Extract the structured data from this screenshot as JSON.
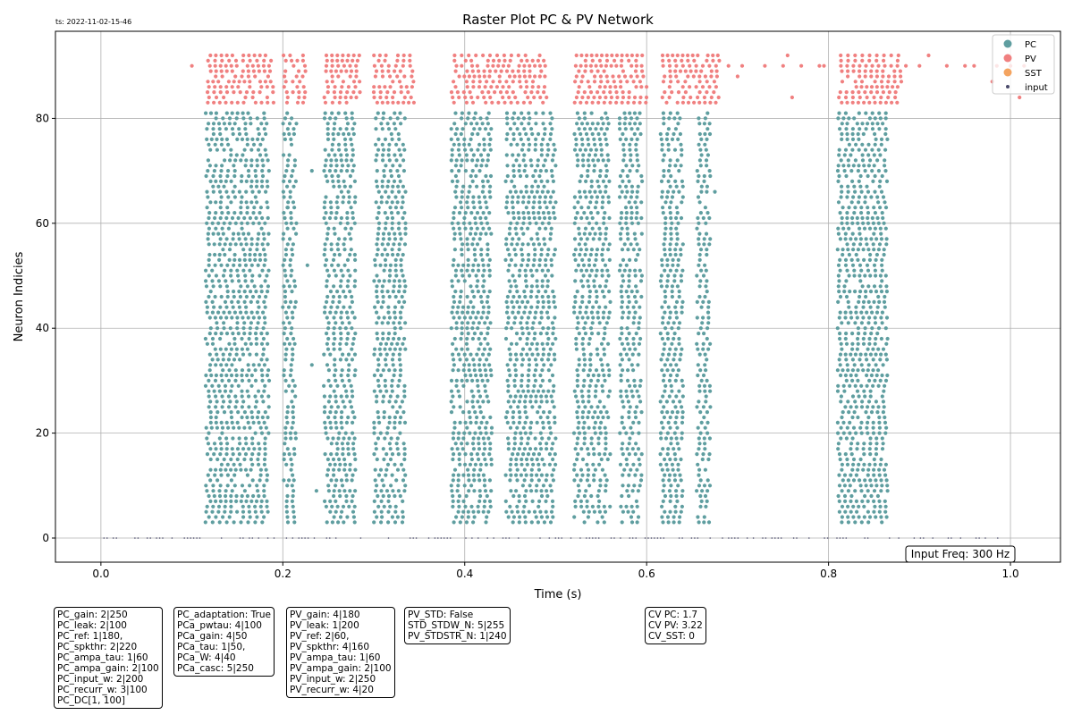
{
  "timestamp": "ts: 2022-11-02-15-46",
  "chart_data": {
    "type": "scatter",
    "title": "Raster Plot PC & PV Network",
    "xlabel": "Time (s)",
    "ylabel": "Neuron Indicies",
    "xlim": [
      -0.05,
      1.055
    ],
    "ylim": [
      -4.6,
      96.6
    ],
    "x_ticks": [
      0.0,
      0.2,
      0.4,
      0.6,
      0.8,
      1.0
    ],
    "x_tick_labels": [
      "0.0",
      "0.2",
      "0.4",
      "0.6",
      "0.8",
      "1.0"
    ],
    "y_ticks": [
      0,
      20,
      40,
      60,
      80
    ],
    "y_tick_labels": [
      "0",
      "20",
      "40",
      "60",
      "80"
    ],
    "grid": true,
    "legend_position": "top-right",
    "legend": [
      {
        "label": "PC",
        "color": "#5f9ea0",
        "marker": "large-dot"
      },
      {
        "label": "PV",
        "color": "#f08080",
        "marker": "large-dot"
      },
      {
        "label": "SST",
        "color": "#f4a460",
        "marker": "large-dot"
      },
      {
        "label": "input",
        "color": "#4a4a6a",
        "marker": "small-dot"
      }
    ],
    "series": [
      {
        "name": "PC",
        "color": "#5f9ea0",
        "neuron_range": [
          3,
          81
        ],
        "bursts": [
          {
            "start": 0.115,
            "end": 0.185
          },
          {
            "start": 0.2,
            "end": 0.215
          },
          {
            "start": 0.245,
            "end": 0.28
          },
          {
            "start": 0.3,
            "end": 0.335
          },
          {
            "start": 0.385,
            "end": 0.43
          },
          {
            "start": 0.445,
            "end": 0.5
          },
          {
            "start": 0.52,
            "end": 0.56
          },
          {
            "start": 0.57,
            "end": 0.595
          },
          {
            "start": 0.615,
            "end": 0.64
          },
          {
            "start": 0.655,
            "end": 0.67
          },
          {
            "start": 0.81,
            "end": 0.865
          }
        ],
        "isolated_points": [
          [
            0.232,
            70
          ],
          [
            0.227,
            52
          ],
          [
            0.232,
            33
          ],
          [
            0.237,
            9
          ],
          [
            0.205,
            63
          ],
          [
            0.675,
            66
          ]
        ]
      },
      {
        "name": "PV",
        "color": "#f08080",
        "neuron_range": [
          83,
          92
        ],
        "bursts": [
          {
            "start": 0.115,
            "end": 0.19
          },
          {
            "start": 0.2,
            "end": 0.225
          },
          {
            "start": 0.245,
            "end": 0.285
          },
          {
            "start": 0.3,
            "end": 0.345
          },
          {
            "start": 0.385,
            "end": 0.49
          },
          {
            "start": 0.52,
            "end": 0.6
          },
          {
            "start": 0.615,
            "end": 0.68
          },
          {
            "start": 0.81,
            "end": 0.88
          }
        ],
        "isolated_points": [
          [
            0.1,
            90
          ],
          [
            0.69,
            90
          ],
          [
            0.7,
            88
          ],
          [
            0.705,
            90
          ],
          [
            0.73,
            90
          ],
          [
            0.75,
            90
          ],
          [
            0.755,
            92
          ],
          [
            0.76,
            84
          ],
          [
            0.77,
            90
          ],
          [
            0.79,
            90
          ],
          [
            0.795,
            90
          ],
          [
            0.885,
            90
          ],
          [
            0.9,
            90
          ],
          [
            0.91,
            92
          ],
          [
            0.93,
            90
          ],
          [
            0.95,
            90
          ],
          [
            0.96,
            90
          ],
          [
            0.98,
            87
          ],
          [
            0.985,
            90
          ],
          [
            1.0,
            90
          ],
          [
            1.01,
            84
          ],
          [
            1.015,
            90
          ]
        ]
      },
      {
        "name": "input",
        "color": "#4a4a6a",
        "neuron_range": [
          0,
          0
        ],
        "x_range": [
          0.0,
          1.0
        ]
      }
    ]
  },
  "input_freq": "Input Freq: 300 Hz",
  "param_boxes": [
    {
      "text": "PC_gain: 2|250\nPC_leak: 2|100\nPC_ref: 1|180,\nPC_spkthr: 2|220\nPC_ampa_tau: 1|60\nPC_ampa_gain: 2|100\nPC_input_w: 2|200\nPC_recurr_w: 3|100\nPC_DC[1, 100]"
    },
    {
      "text": "PC_adaptation: True\nPCa_pwtau: 4|100\nPCa_gain: 4|50\nPCa_tau: 1|50,\nPCa_W: 4|40\nPCa_casc: 5|250"
    },
    {
      "text": "PV_gain: 4|180\nPV_leak: 1|200\nPV_ref: 2|60,\nPV_spkthr: 4|160\nPV_ampa_tau: 1|60\nPV_ampa_gain: 2|100\nPV_input_w: 2|250\nPV_recurr_w: 4|20"
    },
    {
      "text": "PV_STD: False\nSTD_STDW_N: 5|255\nPV_STDSTR_N: 1|240"
    },
    {
      "text": "CV PC: 1.7\nCV PV: 3.22\nCV_SST: 0"
    }
  ]
}
